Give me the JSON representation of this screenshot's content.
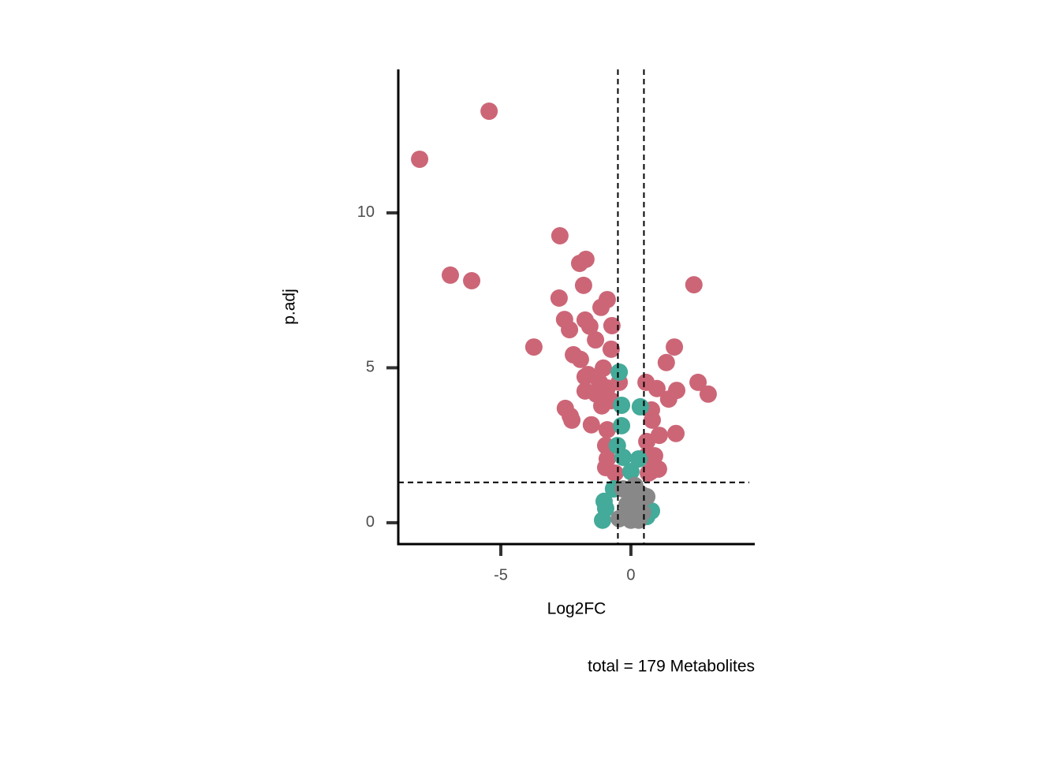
{
  "chart_data": {
    "type": "scatter",
    "x_label": "Log2FC",
    "y_label": "p.adj",
    "caption": "total = 179 Metabolites",
    "xlim": [
      -8.94,
      4.76
    ],
    "ylim": [
      -0.69,
      14.63
    ],
    "xticks": [
      -5,
      0
    ],
    "yticks": [
      0,
      5,
      10
    ],
    "grid": false,
    "thresholds": {
      "x": [
        -0.5,
        0.5
      ],
      "y": 1.3
    },
    "series": [
      {
        "color": "#CC6677",
        "x": [
          -5.45,
          -8.12,
          -2.73,
          -6.94,
          -6.12,
          -1.97,
          -1.73,
          -1.82,
          2.42,
          -2.76,
          -0.91,
          -1.15,
          -2.55,
          -1.76,
          -1.58,
          -2.36,
          -0.73,
          -1.36,
          -3.73,
          1.67,
          -0.76,
          -2.21,
          -1.94,
          1.36,
          -1.06,
          -1.64,
          -1.76,
          -1.21,
          -1.76,
          -1.33,
          -0.91,
          -0.45,
          0.58,
          1.0,
          1.45,
          1.76,
          2.58,
          2.97,
          -2.52,
          -2.33,
          -2.27,
          -1.52,
          -1.12,
          -0.76,
          0.79,
          0.82,
          0.61,
          1.73,
          1.09,
          -0.91,
          -0.97,
          -0.91,
          -0.97,
          0.61,
          0.91,
          1.06,
          0.76,
          0.67,
          -0.61
        ],
        "values": [
          13.28,
          11.73,
          9.26,
          7.99,
          7.81,
          8.37,
          8.5,
          7.66,
          7.68,
          7.25,
          7.2,
          6.95,
          6.56,
          6.54,
          6.34,
          6.23,
          6.36,
          5.9,
          5.67,
          5.67,
          5.6,
          5.42,
          5.27,
          5.17,
          4.99,
          4.78,
          4.71,
          4.53,
          4.25,
          4.15,
          4.35,
          4.53,
          4.53,
          4.33,
          3.99,
          4.27,
          4.53,
          4.15,
          3.69,
          3.44,
          3.31,
          3.16,
          3.77,
          3.94,
          3.64,
          3.31,
          2.62,
          2.88,
          2.82,
          3.0,
          2.49,
          2.06,
          1.78,
          2.16,
          2.16,
          1.73,
          1.65,
          1.6,
          1.6
        ]
      },
      {
        "color": "#44AA99",
        "x": [
          -0.45,
          -0.36,
          0.36,
          -0.36,
          -0.52,
          -0.3,
          0.3,
          0,
          -0.67,
          -1.03,
          -0.97,
          -1.09,
          0.79,
          0.61
        ],
        "values": [
          4.86,
          3.79,
          3.74,
          3.13,
          2.49,
          2.11,
          2.06,
          1.65,
          1.09,
          0.69,
          0.46,
          0.08,
          0.38,
          0.2
        ]
      },
      {
        "color": "#888888",
        "x": [
          -0.3,
          0,
          0.3,
          0.45,
          -0.15,
          0.15,
          -0.3,
          0,
          0.3,
          0.61,
          -0.45,
          0.15,
          0.45
        ],
        "values": [
          1.09,
          0.97,
          0.84,
          0.89,
          0.59,
          0.46,
          0.2,
          0.08,
          0.08,
          0.84,
          0.13,
          1.2,
          0.33
        ]
      }
    ]
  }
}
